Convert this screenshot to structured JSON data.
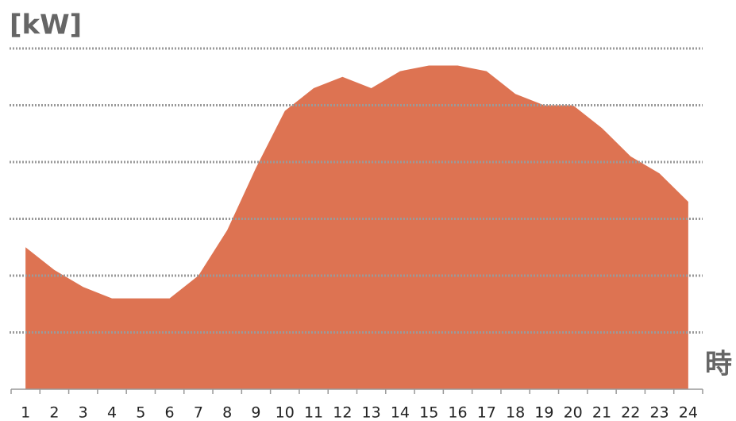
{
  "chart_data": {
    "type": "area",
    "y_label": "[kW]",
    "x_label": "時",
    "categories": [
      "1",
      "2",
      "3",
      "4",
      "5",
      "6",
      "7",
      "8",
      "9",
      "10",
      "11",
      "12",
      "13",
      "14",
      "15",
      "16",
      "17",
      "18",
      "19",
      "20",
      "21",
      "22",
      "23",
      "24"
    ],
    "values": [
      2.5,
      2.1,
      1.8,
      1.6,
      1.6,
      1.6,
      2.0,
      2.8,
      3.9,
      4.9,
      5.3,
      5.5,
      5.3,
      5.6,
      5.7,
      5.7,
      5.6,
      5.2,
      5.0,
      5.0,
      4.6,
      4.1,
      3.8,
      3.3
    ],
    "color": "#dd7352",
    "ylim": [
      0,
      6
    ],
    "yticks": [
      1,
      2,
      3,
      4,
      5,
      6
    ],
    "grid": true
  }
}
